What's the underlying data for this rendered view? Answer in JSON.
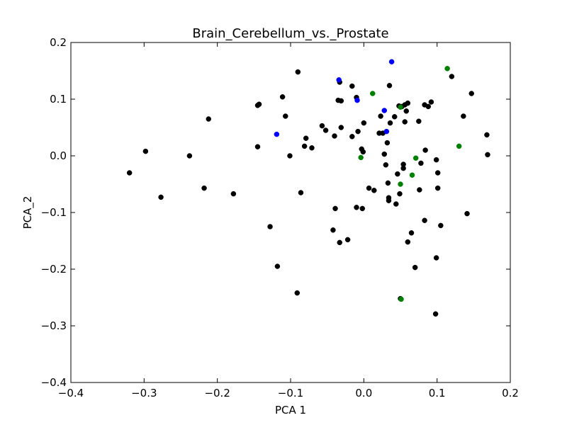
{
  "chart_data": {
    "type": "scatter",
    "title": "Brain_Cerebellum_vs._Prostate",
    "xlabel": "PCA 1",
    "ylabel": "PCA_2",
    "xlim": [
      -0.4,
      0.2
    ],
    "ylim": [
      -0.4,
      0.2
    ],
    "xticks": [
      -0.4,
      -0.3,
      -0.2,
      -0.1,
      0.0,
      0.1,
      0.2
    ],
    "yticks": [
      -0.4,
      -0.3,
      -0.2,
      -0.1,
      0.0,
      0.1,
      0.2
    ],
    "xtick_labels": [
      "−0.4",
      "−0.3",
      "−0.2",
      "−0.1",
      "0.0",
      "0.1",
      "0.2"
    ],
    "ytick_labels": [
      "−0.4",
      "−0.3",
      "−0.2",
      "−0.1",
      "0.0",
      "0.1",
      "0.2"
    ],
    "grid": false,
    "series": [
      {
        "color": "#000000",
        "points": [
          [
            -0.32,
            -0.03
          ],
          [
            -0.298,
            0.008
          ],
          [
            -0.277,
            -0.073
          ],
          [
            -0.238,
            0.0
          ],
          [
            -0.218,
            -0.057
          ],
          [
            -0.212,
            0.065
          ],
          [
            -0.178,
            -0.067
          ],
          [
            -0.145,
            0.089
          ],
          [
            -0.143,
            0.091
          ],
          [
            -0.145,
            0.016
          ],
          [
            -0.128,
            -0.125
          ],
          [
            -0.118,
            -0.195
          ],
          [
            -0.111,
            0.104
          ],
          [
            -0.107,
            0.07
          ],
          [
            -0.101,
            0.0
          ],
          [
            -0.09,
            0.148
          ],
          [
            -0.086,
            -0.065
          ],
          [
            -0.081,
            0.017
          ],
          [
            -0.079,
            0.031
          ],
          [
            -0.071,
            0.014
          ],
          [
            -0.091,
            -0.242
          ],
          [
            -0.057,
            0.053
          ],
          [
            -0.052,
            0.045
          ],
          [
            -0.042,
            -0.131
          ],
          [
            -0.04,
            0.035
          ],
          [
            -0.039,
            -0.093
          ],
          [
            -0.035,
            0.098
          ],
          [
            -0.031,
            0.097
          ],
          [
            -0.031,
            0.05
          ],
          [
            -0.033,
            0.13
          ],
          [
            -0.033,
            -0.153
          ],
          [
            -0.022,
            -0.148
          ],
          [
            -0.016,
            0.123
          ],
          [
            -0.016,
            0.034
          ],
          [
            -0.01,
            0.103
          ],
          [
            -0.008,
            0.043
          ],
          [
            -0.01,
            -0.091
          ],
          [
            -0.003,
            0.012
          ],
          [
            -0.001,
            0.007
          ],
          [
            -0.002,
            -0.093
          ],
          [
            0.0,
            0.058
          ],
          [
            0.007,
            -0.057
          ],
          [
            0.014,
            -0.061
          ],
          [
            0.021,
            0.04
          ],
          [
            0.023,
            0.07
          ],
          [
            0.026,
            0.04
          ],
          [
            0.028,
            0.003
          ],
          [
            0.03,
            -0.016
          ],
          [
            0.032,
            0.023
          ],
          [
            0.033,
            -0.048
          ],
          [
            0.034,
            -0.074
          ],
          [
            0.034,
            -0.079
          ],
          [
            0.035,
            0.124
          ],
          [
            0.036,
            0.058
          ],
          [
            0.042,
            0.069
          ],
          [
            0.044,
            -0.085
          ],
          [
            0.046,
            -0.032
          ],
          [
            0.048,
            0.088
          ],
          [
            0.049,
            -0.067
          ],
          [
            0.052,
            0.087
          ],
          [
            0.054,
            -0.015
          ],
          [
            0.054,
            -0.022
          ],
          [
            0.056,
            0.09
          ],
          [
            0.056,
            0.06
          ],
          [
            0.058,
            0.079
          ],
          [
            0.06,
            0.093
          ],
          [
            0.06,
            -0.152
          ],
          [
            0.065,
            -0.136
          ],
          [
            0.07,
            -0.197
          ],
          [
            0.075,
            0.061
          ],
          [
            0.076,
            -0.06
          ],
          [
            0.078,
            -0.013
          ],
          [
            0.083,
            0.09
          ],
          [
            0.083,
            -0.114
          ],
          [
            0.084,
            0.01
          ],
          [
            0.088,
            0.087
          ],
          [
            0.092,
            0.095
          ],
          [
            0.099,
            -0.007
          ],
          [
            0.099,
            -0.18
          ],
          [
            0.101,
            -0.03
          ],
          [
            0.101,
            -0.057
          ],
          [
            0.105,
            -0.123
          ],
          [
            0.098,
            -0.279
          ],
          [
            0.05,
            -0.252
          ],
          [
            0.12,
            0.14
          ],
          [
            0.136,
            0.07
          ],
          [
            0.141,
            -0.102
          ],
          [
            0.147,
            0.11
          ],
          [
            0.168,
            0.037
          ],
          [
            0.169,
            0.002
          ]
        ]
      },
      {
        "color": "#0000ff",
        "points": [
          [
            -0.119,
            0.038
          ],
          [
            -0.034,
            0.134
          ],
          [
            -0.009,
            0.098
          ],
          [
            0.028,
            0.08
          ],
          [
            0.031,
            0.043
          ],
          [
            0.038,
            0.166
          ]
        ]
      },
      {
        "color": "#008000",
        "points": [
          [
            -0.004,
            -0.003
          ],
          [
            0.012,
            0.11
          ],
          [
            0.05,
            0.086
          ],
          [
            0.05,
            -0.05
          ],
          [
            0.051,
            -0.253
          ],
          [
            0.066,
            -0.034
          ],
          [
            0.071,
            -0.004
          ],
          [
            0.114,
            0.154
          ],
          [
            0.13,
            0.017
          ]
        ]
      }
    ]
  }
}
